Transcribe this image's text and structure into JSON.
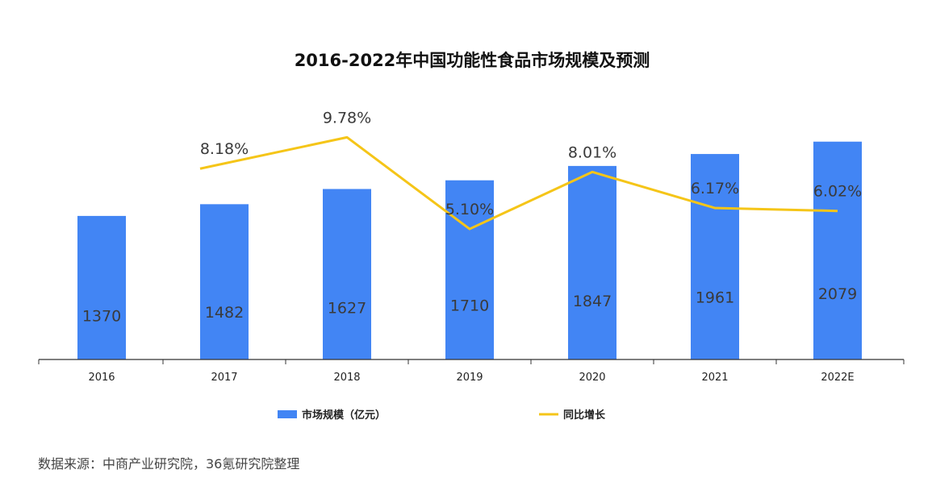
{
  "chart_data": {
    "type": "bar",
    "title": "2016-2022年中国功能性食品市场规模及预测",
    "categories": [
      "2016",
      "2017",
      "2018",
      "2019",
      "2020",
      "2021",
      "2022E"
    ],
    "series": [
      {
        "name": "市场规模（亿元）",
        "type": "bar",
        "color": "#4285f4",
        "values": [
          1370,
          1482,
          1627,
          1710,
          1847,
          1961,
          2079
        ],
        "labels": [
          "1370",
          "1482",
          "1627",
          "1710",
          "1847",
          "1961",
          "2079"
        ]
      },
      {
        "name": "同比增长",
        "type": "line",
        "color": "#f5c518",
        "values": [
          null,
          8.18,
          9.78,
          5.1,
          8.01,
          6.17,
          6.02
        ],
        "labels": [
          "",
          "8.18%",
          "9.78%",
          "5.10%",
          "8.01%",
          "6.17%",
          "6.02%"
        ]
      }
    ],
    "bar_ylim": [
      0,
      2200
    ],
    "line_ylim": [
      0,
      11
    ],
    "legend_position": "bottom",
    "grid": false
  },
  "source_text": "数据来源：中商产业研究院，36氪研究院整理"
}
